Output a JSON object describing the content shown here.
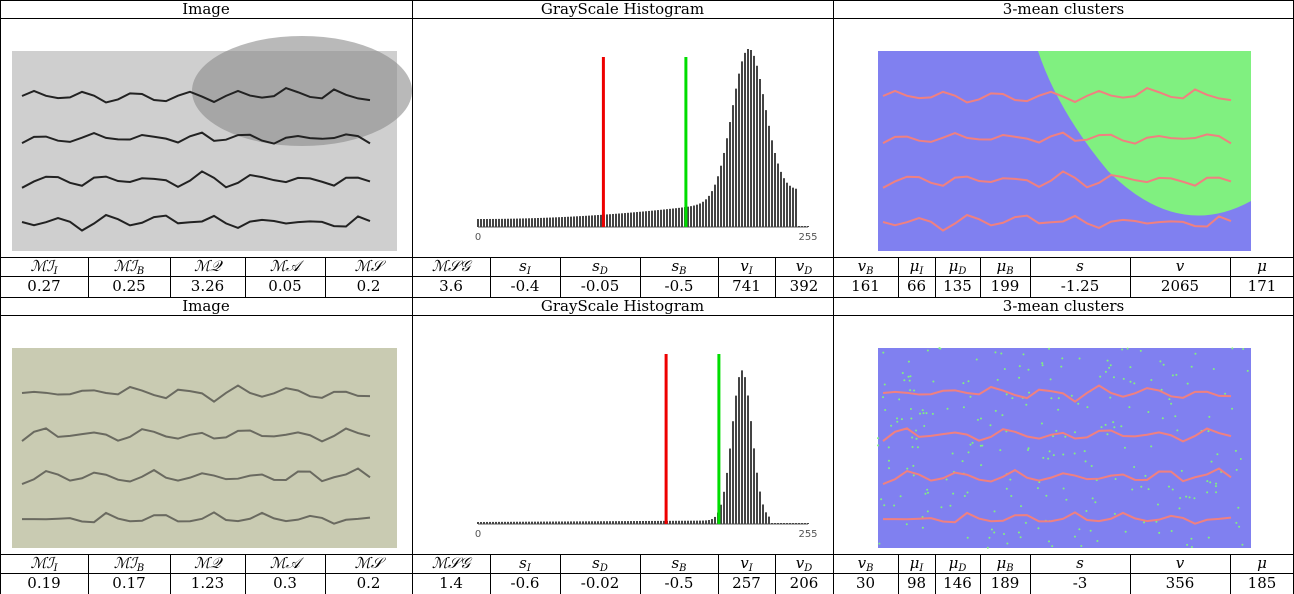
{
  "blocks": [
    {
      "headers": [
        "Image",
        "GrayScale Histogram",
        "3-mean clusters"
      ],
      "histogram_axis": [
        0,
        255
      ],
      "metrics": [
        {
          "label": "ℳℐ",
          "sub": "I",
          "value": 0.27
        },
        {
          "label": "ℳℐ",
          "sub": "B",
          "value": 0.25
        },
        {
          "label": "ℳ𝒬",
          "value": 3.26
        },
        {
          "label": "ℳ𝒜",
          "value": 0.05
        },
        {
          "label": "ℳ𝒮",
          "value": 0.2
        },
        {
          "label": "ℳ𝒮𝒢",
          "value": 3.6
        },
        {
          "label": "s",
          "sub": "I",
          "value": -0.4
        },
        {
          "label": "s",
          "sub": "D",
          "value": -0.05
        },
        {
          "label": "s",
          "sub": "B",
          "value": -0.5
        },
        {
          "label": "v",
          "sub": "I",
          "value": 741
        },
        {
          "label": "v",
          "sub": "D",
          "value": 392
        },
        {
          "label": "v",
          "sub": "B",
          "value": 161
        },
        {
          "label": "μ",
          "sub": "I",
          "value": 66
        },
        {
          "label": "μ",
          "sub": "D",
          "value": 135
        },
        {
          "label": "μ",
          "sub": "B",
          "value": 199
        },
        {
          "label": "s",
          "value": -1.25
        },
        {
          "label": "v",
          "value": 2065
        },
        {
          "label": "μ",
          "value": 171
        }
      ]
    },
    {
      "headers": [
        "Image",
        "GrayScale Histogram",
        "3-mean clusters"
      ],
      "histogram_axis": [
        0,
        255
      ],
      "metrics": [
        {
          "label": "ℳℐ",
          "sub": "I",
          "value": 0.19
        },
        {
          "label": "ℳℐ",
          "sub": "B",
          "value": 0.17
        },
        {
          "label": "ℳ𝒬",
          "value": 1.23
        },
        {
          "label": "ℳ𝒜",
          "value": 0.3
        },
        {
          "label": "ℳ𝒮",
          "value": 0.2
        },
        {
          "label": "ℳ𝒮𝒢",
          "value": 1.4
        },
        {
          "label": "s",
          "sub": "I",
          "value": -0.6
        },
        {
          "label": "s",
          "sub": "D",
          "value": -0.02
        },
        {
          "label": "s",
          "sub": "B",
          "value": -0.5
        },
        {
          "label": "v",
          "sub": "I",
          "value": 257
        },
        {
          "label": "v",
          "sub": "D",
          "value": 206
        },
        {
          "label": "v",
          "sub": "B",
          "value": 30
        },
        {
          "label": "μ",
          "sub": "I",
          "value": 98
        },
        {
          "label": "μ",
          "sub": "D",
          "value": 146
        },
        {
          "label": "μ",
          "sub": "B",
          "value": 189
        },
        {
          "label": "s",
          "value": -3
        },
        {
          "label": "v",
          "value": 356
        },
        {
          "label": "μ",
          "value": 185
        }
      ]
    }
  ]
}
